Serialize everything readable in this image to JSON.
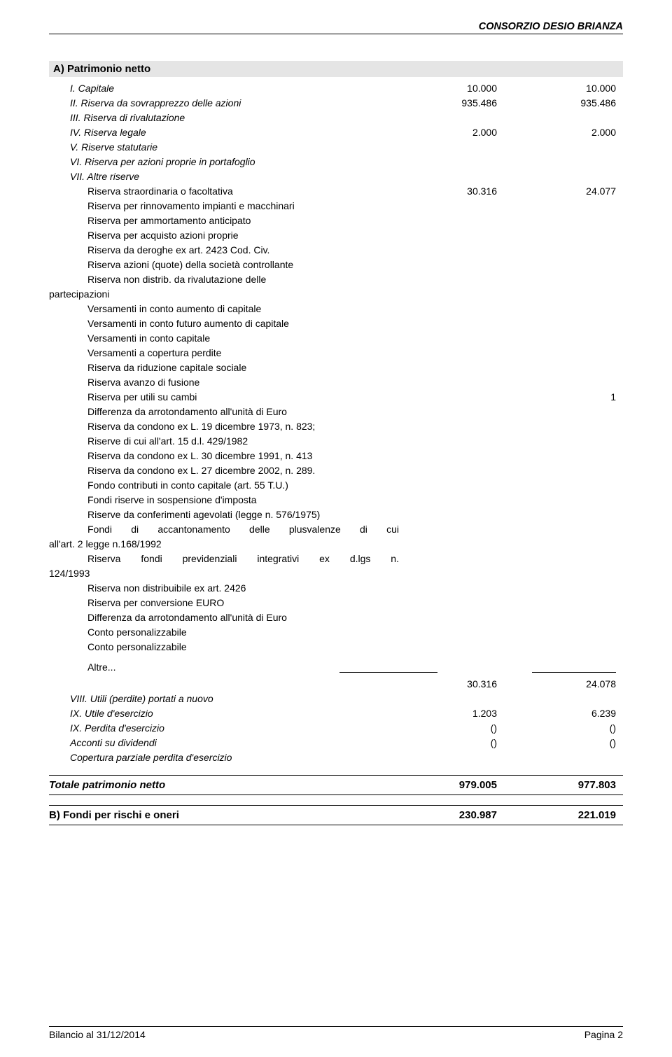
{
  "header": {
    "org": "CONSORZIO DESIO BRIANZA"
  },
  "sectionA": {
    "title": "A) Patrimonio netto",
    "rows": {
      "capitale": {
        "label": "I. Capitale",
        "a": "10.000",
        "b": "10.000"
      },
      "sovrapprezzo": {
        "label": "II. Riserva da sovrapprezzo delle azioni",
        "a": "935.486",
        "b": "935.486"
      },
      "rivalutazione": {
        "label": "III. Riserva di rivalutazione"
      },
      "legale": {
        "label": "IV. Riserva legale",
        "a": "2.000",
        "b": "2.000"
      },
      "statutarie": {
        "label": "V. Riserve statutarie"
      },
      "azioni_proprie": {
        "label": "VI. Riserva per azioni proprie in portafoglio"
      },
      "altre_riserve_hdr": {
        "label": "VII. Altre riserve"
      },
      "straordinaria": {
        "label": "Riserva straordinaria o facoltativa",
        "a": "30.316",
        "b": "24.077"
      },
      "rinnovamento": {
        "label": "Riserva per rinnovamento impianti e macchinari"
      },
      "ammortamento": {
        "label": "Riserva per ammortamento anticipato"
      },
      "acquisto": {
        "label": "Riserva per acquisto azioni proprie"
      },
      "deroghe": {
        "label": "Riserva da deroghe ex art. 2423 Cod. Civ."
      },
      "controllante": {
        "label": "Riserva azioni (quote) della società controllante"
      },
      "non_distrib_line1": "Riserva non distrib. da rivalutazione delle",
      "non_distrib_line2": "partecipazioni",
      "vers_aumento": {
        "label": "Versamenti in conto aumento di capitale"
      },
      "vers_futuro": {
        "label": "Versamenti in conto futuro aumento di capitale"
      },
      "vers_capitale": {
        "label": "Versamenti in conto capitale"
      },
      "vers_copertura": {
        "label": "Versamenti a copertura perdite"
      },
      "riduzione": {
        "label": "Riserva da riduzione capitale sociale"
      },
      "avanzo": {
        "label": "Riserva avanzo di fusione"
      },
      "utili_cambi": {
        "label": "Riserva per utili su cambi",
        "b": "1"
      },
      "diff_arr1": {
        "label": "Differenza da arrotondamento all'unità di Euro"
      },
      "condono73_line1": "Riserva da condono ex L. 19 dicembre 1973, n. 823;",
      "condono73_line2": "Riserve di cui all'art. 15 d.l. 429/1982",
      "condono91": {
        "label": "Riserva da condono ex L. 30 dicembre 1991, n. 413"
      },
      "condono02_line1": "Riserva da condono ex L. 27 dicembre 2002, n. 289.",
      "condono02_line2": "Fondo contributi in conto capitale (art. 55 T.U.)",
      "fondi_sosp": {
        "label": "Fondi riserve in sospensione d'imposta"
      },
      "conferimenti": {
        "label": "Riserve da  conferimenti agevolati (legge n. 576/1975)"
      },
      "plusvalenze_line1": "Fondi di accantonamento delle plusvalenze di cui",
      "plusvalenze_line2": "all'art. 2 legge n.168/1992",
      "previdenziali_line1": "Riserva fondi previdenziali integrativi ex d.lgs n.",
      "previdenziali_line2": "124/1993",
      "non_dist_2426": {
        "label": "Riserva non distribuibile ex art. 2426"
      },
      "conversione": {
        "label": "Riserva per conversione EURO"
      },
      "diff_arr2": {
        "label": "Differenza da arrotondamento all'unità di Euro"
      },
      "conto1": {
        "label": "Conto personalizzabile"
      },
      "conto2": {
        "label": "Conto personalizzabile"
      },
      "altre_dots": {
        "label": "Altre..."
      },
      "subtotal_vii": {
        "a": "30.316",
        "b": "24.078"
      },
      "utili_perdite": {
        "label": "VIII. Utili (perdite) portati a nuovo"
      },
      "utile_es": {
        "label": "IX. Utile d'esercizio",
        "a": "1.203",
        "b": "6.239"
      },
      "perdita_es": {
        "label": "IX. Perdita d'esercizio",
        "a": "()",
        "b": "()"
      },
      "acconti": {
        "label": "Acconti su dividendi",
        "a": "()",
        "b": "()"
      },
      "copertura_parz": {
        "label": "Copertura parziale perdita d'esercizio"
      }
    },
    "total": {
      "label": "Totale patrimonio netto",
      "a": "979.005",
      "b": "977.803"
    }
  },
  "sectionB": {
    "title": "B) Fondi per rischi e oneri",
    "a": "230.987",
    "b": "221.019"
  },
  "footer": {
    "left": "Bilancio al 31/12/2014",
    "right": "Pagina 2"
  }
}
